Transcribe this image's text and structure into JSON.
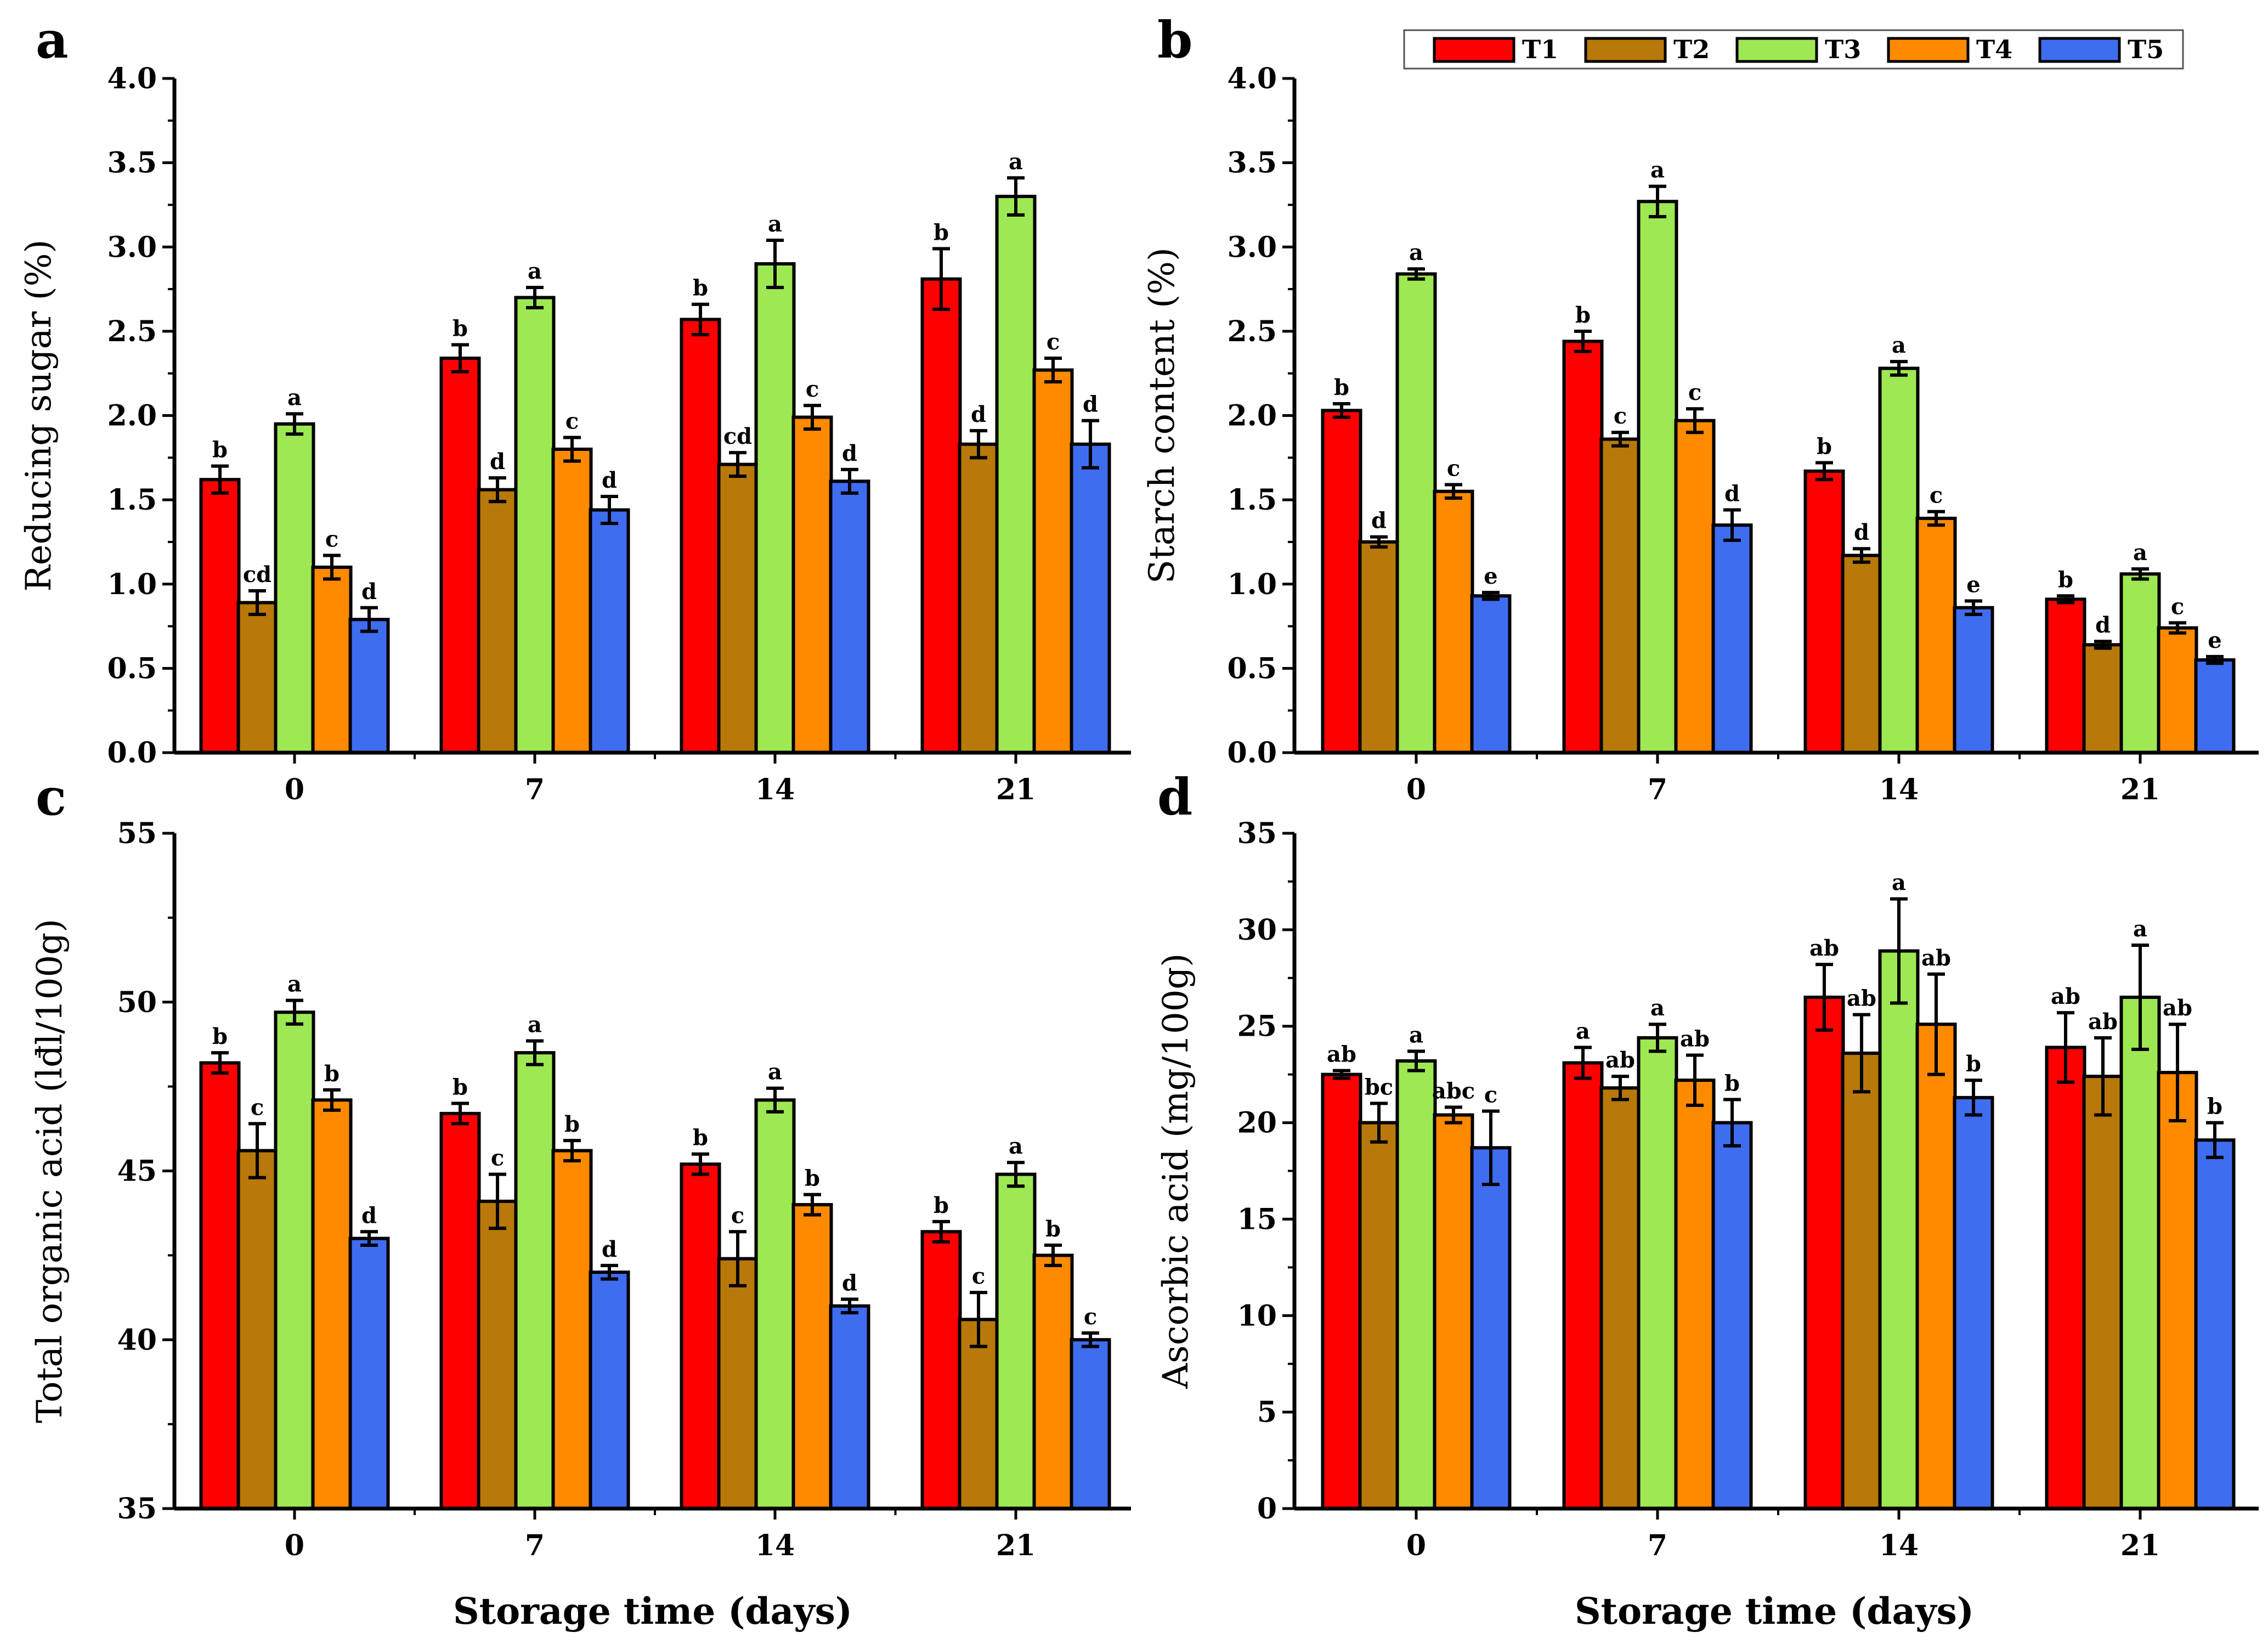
{
  "x_title": "Storage time (days)",
  "colors": {
    "T1": "#ff0000",
    "T2": "#b8780a",
    "T3": "#9de853",
    "T4": "#ff8a00",
    "T5": "#3f6df0"
  },
  "legend": [
    "T1",
    "T2",
    "T3",
    "T4",
    "T5"
  ],
  "chart_data": [
    {
      "type": "bar",
      "panel": "a",
      "ylabel": "Reducing sugar (%)",
      "xlabel": "Storage time (days)",
      "categories": [
        "0",
        "7",
        "14",
        "21"
      ],
      "ylim": [
        0.0,
        4.0
      ],
      "yticks": [
        "0.0",
        "0.5",
        "1.0",
        "1.5",
        "2.0",
        "2.5",
        "3.0",
        "3.5",
        "4.0"
      ],
      "series": [
        {
          "name": "T1",
          "values": [
            1.62,
            2.34,
            2.57,
            2.81
          ],
          "errors": [
            0.08,
            0.08,
            0.09,
            0.18
          ],
          "letters": [
            "b",
            "b",
            "b",
            "b"
          ]
        },
        {
          "name": "T2",
          "values": [
            0.89,
            1.56,
            1.71,
            1.83
          ],
          "errors": [
            0.07,
            0.07,
            0.07,
            0.08
          ],
          "letters": [
            "cd",
            "d",
            "cd",
            "d"
          ]
        },
        {
          "name": "T3",
          "values": [
            1.95,
            2.7,
            2.9,
            3.3
          ],
          "errors": [
            0.06,
            0.06,
            0.14,
            0.11
          ],
          "letters": [
            "a",
            "a",
            "a",
            "a"
          ]
        },
        {
          "name": "T4",
          "values": [
            1.1,
            1.8,
            1.99,
            2.27
          ],
          "errors": [
            0.07,
            0.07,
            0.07,
            0.07
          ],
          "letters": [
            "c",
            "c",
            "c",
            "c"
          ]
        },
        {
          "name": "T5",
          "values": [
            0.79,
            1.44,
            1.61,
            1.83
          ],
          "errors": [
            0.07,
            0.08,
            0.07,
            0.14
          ],
          "letters": [
            "d",
            "d",
            "d",
            "d"
          ]
        }
      ]
    },
    {
      "type": "bar",
      "panel": "b",
      "ylabel": "Starch content (%)",
      "xlabel": "Storage time (days)",
      "categories": [
        "0",
        "7",
        "14",
        "21"
      ],
      "ylim": [
        0.0,
        4.0
      ],
      "yticks": [
        "0.0",
        "0.5",
        "1.0",
        "1.5",
        "2.0",
        "2.5",
        "3.0",
        "3.5",
        "4.0"
      ],
      "series": [
        {
          "name": "T1",
          "values": [
            2.03,
            2.44,
            1.67,
            0.91
          ],
          "errors": [
            0.04,
            0.06,
            0.05,
            0.02
          ],
          "letters": [
            "b",
            "b",
            "b",
            "b"
          ]
        },
        {
          "name": "T2",
          "values": [
            1.25,
            1.86,
            1.17,
            0.64
          ],
          "errors": [
            0.03,
            0.04,
            0.04,
            0.02
          ],
          "letters": [
            "d",
            "c",
            "d",
            "d"
          ]
        },
        {
          "name": "T3",
          "values": [
            2.84,
            3.27,
            2.28,
            1.06
          ],
          "errors": [
            0.03,
            0.09,
            0.04,
            0.03
          ],
          "letters": [
            "a",
            "a",
            "a",
            "a"
          ]
        },
        {
          "name": "T4",
          "values": [
            1.55,
            1.97,
            1.39,
            0.74
          ],
          "errors": [
            0.04,
            0.07,
            0.04,
            0.03
          ],
          "letters": [
            "c",
            "c",
            "c",
            "c"
          ]
        },
        {
          "name": "T5",
          "values": [
            0.93,
            1.35,
            0.86,
            0.55
          ],
          "errors": [
            0.02,
            0.09,
            0.04,
            0.02
          ],
          "letters": [
            "e",
            "d",
            "e",
            "e"
          ]
        }
      ]
    },
    {
      "type": "bar",
      "panel": "c",
      "ylabel": "Total organic acid (lđl/100g)",
      "xlabel": "Storage time (days)",
      "categories": [
        "0",
        "7",
        "14",
        "21"
      ],
      "ylim": [
        35,
        55
      ],
      "yticks": [
        "35",
        "40",
        "45",
        "50",
        "55"
      ],
      "series": [
        {
          "name": "T1",
          "values": [
            48.2,
            46.7,
            45.2,
            43.2
          ],
          "errors": [
            0.3,
            0.3,
            0.3,
            0.3
          ],
          "letters": [
            "b",
            "b",
            "b",
            "b"
          ]
        },
        {
          "name": "T2",
          "values": [
            45.6,
            44.1,
            42.4,
            40.6
          ],
          "errors": [
            0.8,
            0.8,
            0.8,
            0.8
          ],
          "letters": [
            "c",
            "c",
            "c",
            "c"
          ]
        },
        {
          "name": "T3",
          "values": [
            49.7,
            48.5,
            47.1,
            44.9
          ],
          "errors": [
            0.35,
            0.35,
            0.35,
            0.35
          ],
          "letters": [
            "a",
            "a",
            "a",
            "a"
          ]
        },
        {
          "name": "T4",
          "values": [
            47.1,
            45.6,
            44.0,
            42.5
          ],
          "errors": [
            0.3,
            0.3,
            0.3,
            0.3
          ],
          "letters": [
            "b",
            "b",
            "b",
            "b"
          ]
        },
        {
          "name": "T5",
          "values": [
            43.0,
            42.0,
            41.0,
            40.0
          ],
          "errors": [
            0.2,
            0.2,
            0.2,
            0.2
          ],
          "letters": [
            "d",
            "d",
            "d",
            "c"
          ]
        }
      ]
    },
    {
      "type": "bar",
      "panel": "d",
      "ylabel": "Ascorbic acid (mg/100g)",
      "xlabel": "Storage time (days)",
      "categories": [
        "0",
        "7",
        "14",
        "21"
      ],
      "ylim": [
        0,
        35
      ],
      "yticks": [
        "0",
        "5",
        "10",
        "15",
        "20",
        "25",
        "30",
        "35"
      ],
      "series": [
        {
          "name": "T1",
          "values": [
            22.5,
            23.1,
            26.5,
            23.9
          ],
          "errors": [
            0.2,
            0.8,
            1.7,
            1.8
          ],
          "letters": [
            "ab",
            "a",
            "ab",
            "ab"
          ]
        },
        {
          "name": "T2",
          "values": [
            20.0,
            21.8,
            23.6,
            22.4
          ],
          "errors": [
            1.0,
            0.6,
            2.0,
            2.0
          ],
          "letters": [
            "bc",
            "ab",
            "ab",
            "ab"
          ]
        },
        {
          "name": "T3",
          "values": [
            23.2,
            24.4,
            28.9,
            26.5
          ],
          "errors": [
            0.5,
            0.7,
            2.7,
            2.7
          ],
          "letters": [
            "a",
            "a",
            "a",
            "a"
          ]
        },
        {
          "name": "T4",
          "values": [
            20.4,
            22.2,
            25.1,
            22.6
          ],
          "errors": [
            0.4,
            1.3,
            2.6,
            2.5
          ],
          "letters": [
            "abc",
            "ab",
            "ab",
            "ab"
          ]
        },
        {
          "name": "T5",
          "values": [
            18.7,
            20.0,
            21.3,
            19.1
          ],
          "errors": [
            1.9,
            1.2,
            0.9,
            0.9
          ],
          "letters": [
            "c",
            "b",
            "b",
            "b"
          ]
        }
      ]
    }
  ]
}
